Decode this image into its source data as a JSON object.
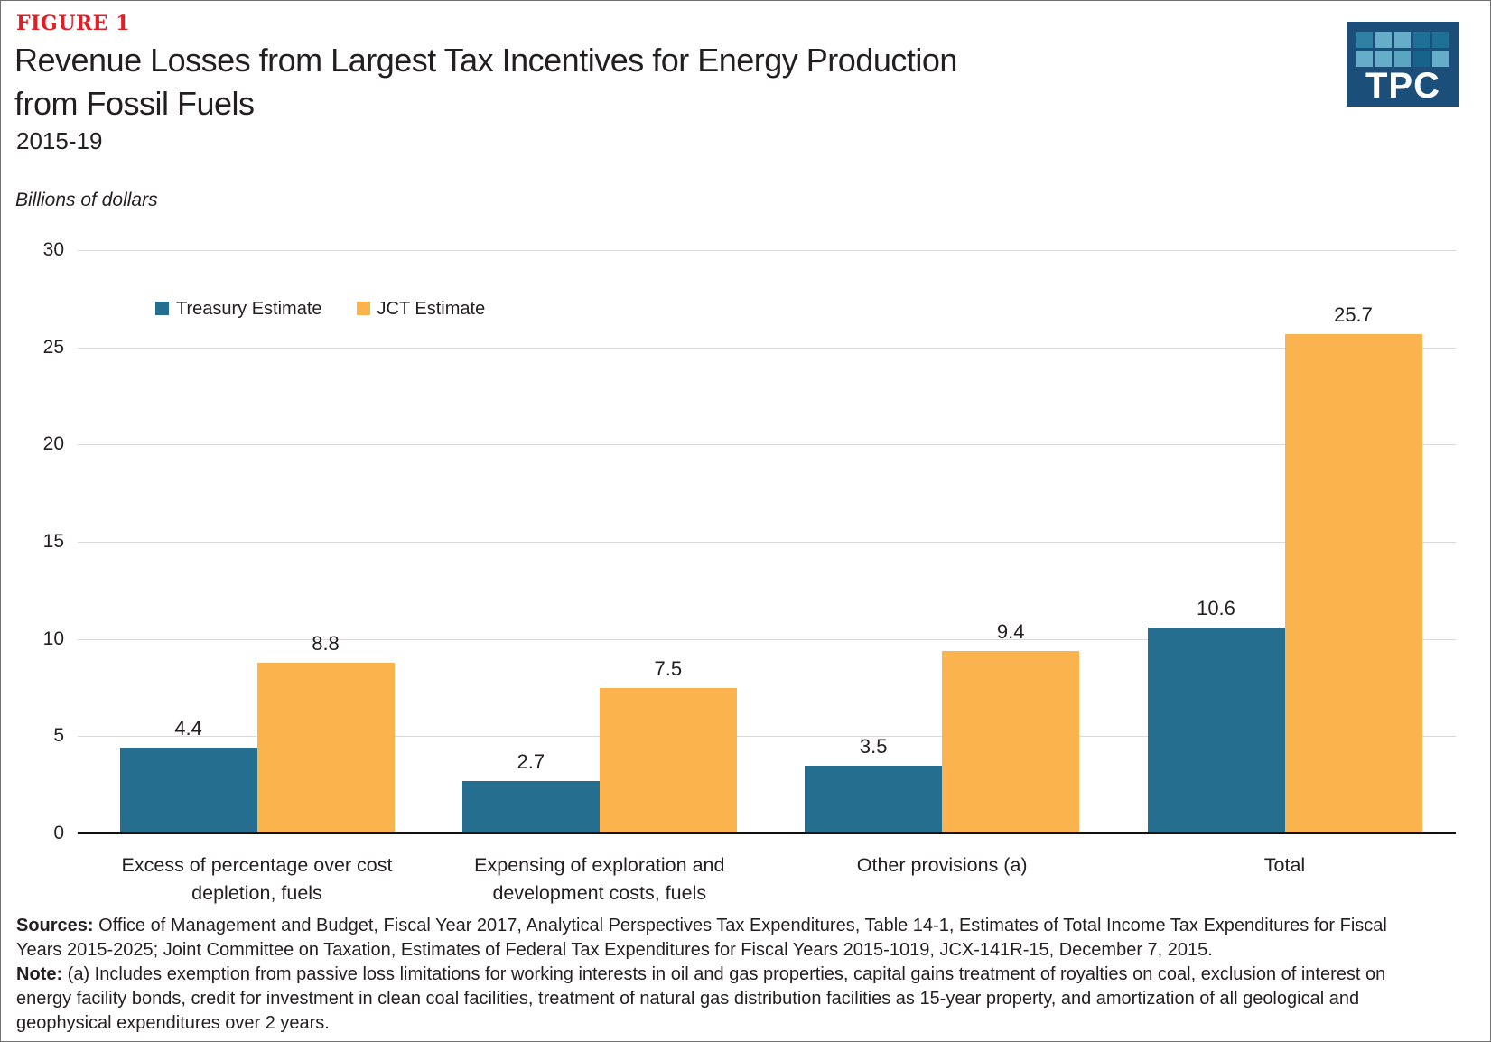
{
  "figure_label": "FIGURE 1",
  "title_line1": "Revenue Losses from Largest Tax Incentives for Energy Production",
  "title_line2": "from Fossil Fuels",
  "subtitle": "2015-19",
  "units_label": "Billions of dollars",
  "logo": {
    "text": "TPC",
    "background": "#1c4e7a",
    "square_colors": [
      "#2e80a4",
      "#65adc8",
      "#65adc8",
      "#1f7096",
      "#1f7096",
      "#65adc8",
      "#65adc8",
      "#5aa5c2",
      "#16648c",
      "#65adc8"
    ]
  },
  "legend": {
    "items": [
      {
        "label": "Treasury Estimate",
        "color": "#256e8f"
      },
      {
        "label": "JCT Estimate",
        "color": "#fbb44d"
      }
    ]
  },
  "chart_data": {
    "type": "bar",
    "title": "Revenue Losses from Largest Tax Incentives for Energy Production from Fossil Fuels, 2015-19",
    "ylabel": "Billions of dollars",
    "xlabel": "",
    "ylim": [
      0,
      30
    ],
    "yticks": [
      0,
      5,
      10,
      15,
      20,
      25,
      30
    ],
    "grid": true,
    "legend_position": "top-left-inside",
    "categories": [
      "Excess of percentage over cost depletion, fuels",
      "Expensing of exploration and development costs, fuels",
      "Other provisions (a)",
      "Total"
    ],
    "series": [
      {
        "name": "Treasury Estimate",
        "color": "#256e8f",
        "values": [
          4.4,
          2.7,
          3.5,
          10.6
        ]
      },
      {
        "name": "JCT Estimate",
        "color": "#fbb44d",
        "values": [
          8.8,
          7.5,
          9.4,
          25.7
        ]
      }
    ]
  },
  "footer": {
    "sources_label": "Sources:",
    "sources_line1_rest": " Office of Management and Budget, Fiscal Year 2017, Analytical Perspectives Tax Expenditures, Table 14-1, Estimates of Total Income Tax Expenditures for Fiscal",
    "sources_line2": "Years 2015-2025; Joint Committee on Taxation, Estimates of Federal Tax Expenditures for Fiscal Years 2015-1019, JCX-141R-15, December 7, 2015.",
    "note_label": "Note:",
    "note_line1_rest": " (a) Includes exemption from passive loss limitations for working interests in oil and gas properties, capital gains treatment of royalties on coal, exclusion of interest on",
    "note_line2": "energy facility bonds, credit for investment in clean coal facilities, treatment of natural gas distribution facilities as 15-year property, and amortization of all geological and",
    "note_line3": "geophysical expenditures over 2 years."
  }
}
